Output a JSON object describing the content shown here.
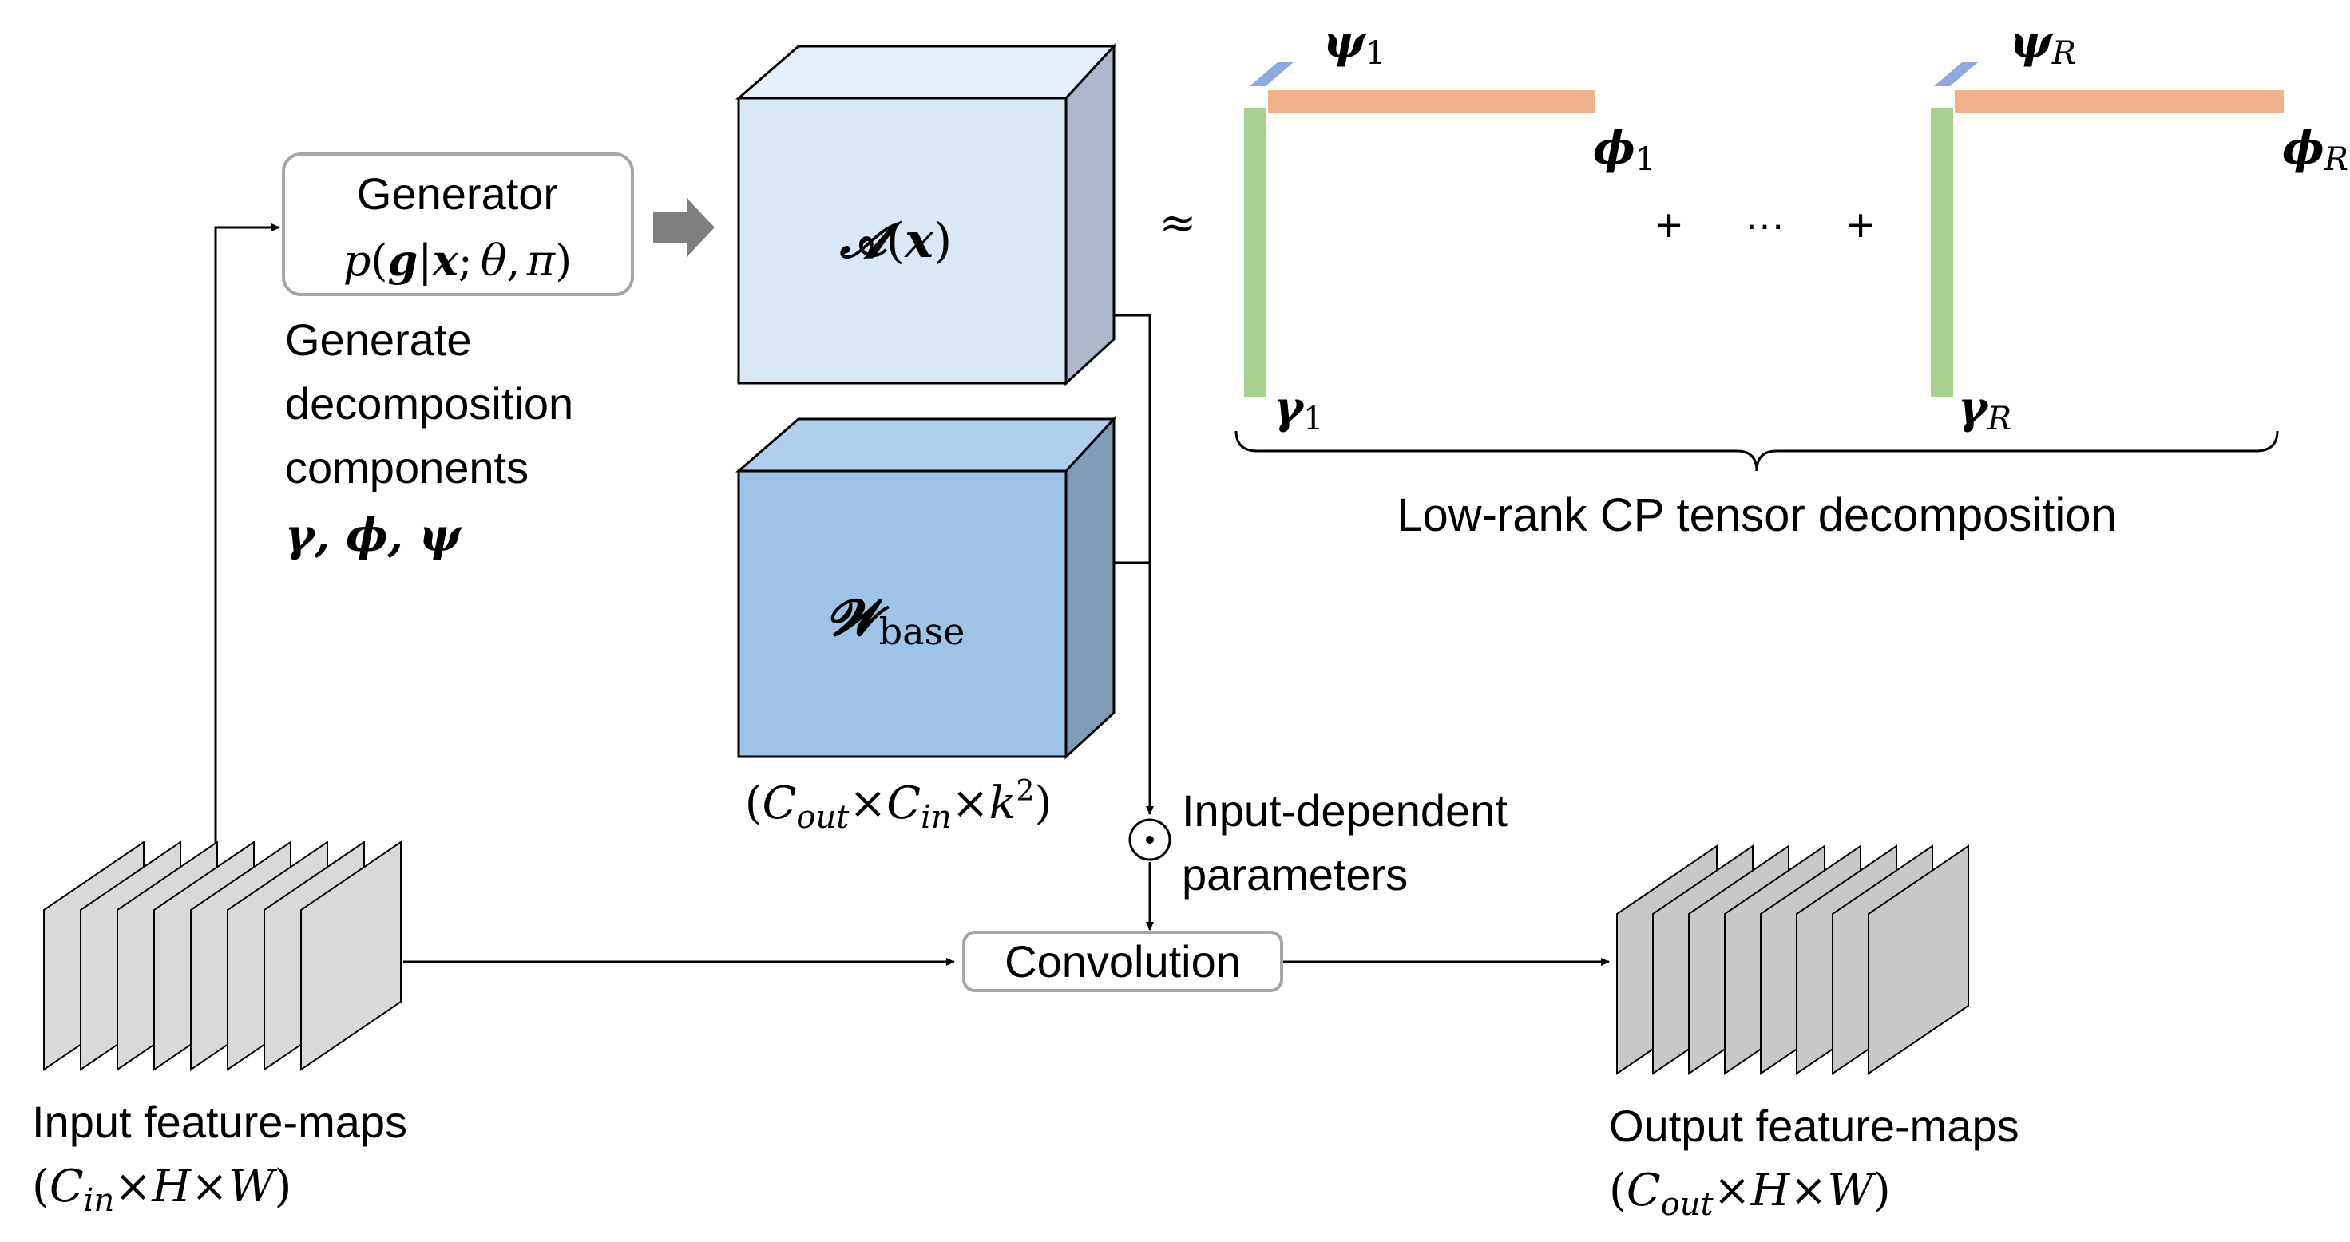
{
  "generator": {
    "title": "Generator",
    "formula_p": "p",
    "formula_open": "(",
    "formula_g": "g",
    "formula_bar": "|",
    "formula_x": "x",
    "formula_sep": ";",
    "formula_theta": "θ",
    "formula_comma": ",",
    "formula_pi": "π",
    "formula_close": ")"
  },
  "generate_text": {
    "line1": "Generate",
    "line2": "decomposition",
    "line3": "components",
    "line4": "γ, ϕ, ψ"
  },
  "tensor_a": {
    "symbol": "𝓐",
    "open": "(",
    "arg": "x",
    "close": ")"
  },
  "tensor_w": {
    "symbol": "𝓦",
    "subscript": "base"
  },
  "w_dims": {
    "open": "(",
    "c_out": "C",
    "c_out_sub": "out",
    "times1": "×",
    "c_in": "C",
    "c_in_sub": "in",
    "times2": "×",
    "k": "k",
    "k_sup": "2",
    "close": ")"
  },
  "approx": "≈",
  "decomposition": {
    "psi1": "ψ",
    "psi1_sub": "1",
    "phi1": "ϕ",
    "phi1_sub": "1",
    "gamma1": "γ",
    "gamma1_sub": "1",
    "psiR": "ψ",
    "psiR_sub": "R",
    "phiR": "ϕ",
    "phiR_sub": "R",
    "gammaR": "γ",
    "gammaR_sub": "R",
    "plus1": "+",
    "dots": "···",
    "plus2": "+",
    "label": "Low-rank CP tensor decomposition"
  },
  "hadamard": {
    "symbol": "⊙",
    "line1": "Input-dependent",
    "line2": "parameters"
  },
  "convolution": {
    "label": "Convolution"
  },
  "input_maps": {
    "label": "Input feature-maps",
    "dims_open": "(",
    "c": "C",
    "c_sub": "in",
    "times1": "×",
    "h": "H",
    "times2": "×",
    "w": "W",
    "dims_close": ")"
  },
  "output_maps": {
    "label": "Output feature-maps",
    "dims_open": "(",
    "c": "C",
    "c_sub": "out",
    "times1": "×",
    "h": "H",
    "times2": "×",
    "w": "W",
    "dims_close": ")"
  },
  "colors": {
    "psi": "#8fa9dc",
    "phi": "#f0b08a",
    "gamma": "#a9d18e",
    "a_front": "#dae8f5",
    "a_top": "#e6f0fa",
    "a_side": "#adb9ca",
    "w_front": "#9dc3e6",
    "w_top": "#aecfee",
    "w_side": "#7f9bb6",
    "input_map": "#d9d9d9",
    "output_map": "#c8c8c8",
    "arrow_gray": "#7f7f7f",
    "box_border": "#a6a6a6"
  }
}
